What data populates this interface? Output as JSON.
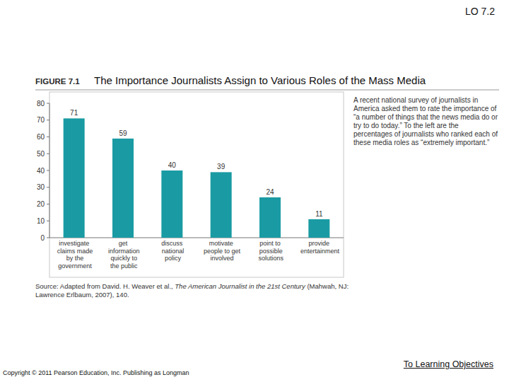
{
  "chart_data": {
    "type": "bar",
    "title": "The Importance Journalists Assign to Various Roles of the Mass Media",
    "categories": [
      "investigate claims made by the government",
      "get information quickly to the public",
      "discuss national policy",
      "motivate people to get involved",
      "point to possible solutions",
      "provide entertainment"
    ],
    "values": [
      71,
      59,
      40,
      39,
      24,
      11
    ],
    "color": "#1a9ba3",
    "ylim": [
      0,
      80
    ],
    "yticks": [
      0,
      10,
      20,
      30,
      40,
      50,
      60,
      70,
      80
    ],
    "grid": false,
    "data_labels": true
  },
  "slide": {
    "header": "LO 7.2",
    "figure_label": "FIGURE 7.1",
    "note": "A recent national survey of journalists in America asked them to rate the importance of “a number of things that the news media do or try to do today.” To the left are the percentages of journalists who ranked each of these media roles as “extremely important.”",
    "source": [
      "Source: Adapted from David. H. Weaver et al., ",
      "The American Journalist in the 21st Century",
      " (Mahwah, NJ: Lawrence Erlbaum, 2007), 140."
    ],
    "copyright": "Copyright © 2011 Pearson Education, Inc. Publishing as Longman",
    "link": "To Learning Objectives"
  }
}
